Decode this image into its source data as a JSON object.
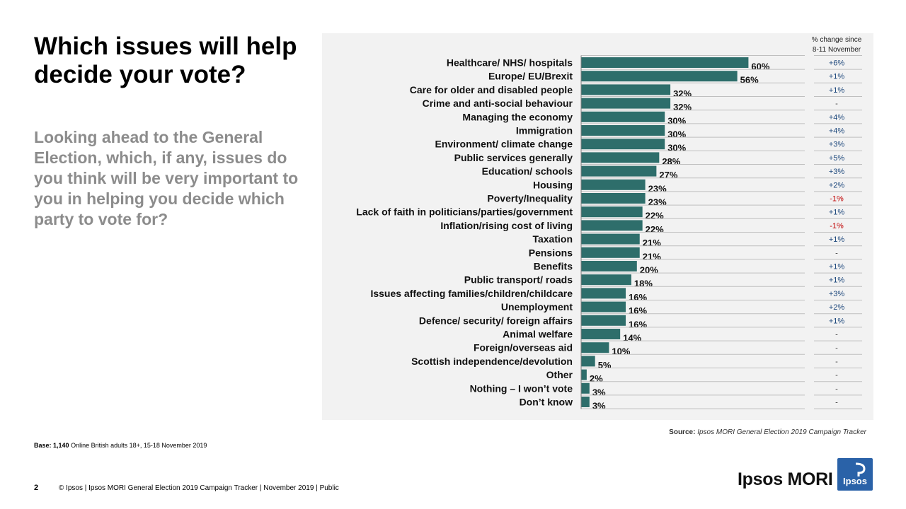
{
  "slide": {
    "title": "Which issues will help decide your vote?",
    "subtitle": "Looking ahead to the General Election, which, if any, issues do you think will be very important to you in helping you decide which party to vote for?",
    "source_label": "Source:",
    "source_text": "Ipsos MORI General Election 2019 Campaign Tracker",
    "base_label": "Base:",
    "base_count": "1,140",
    "base_text": "Online British adults 18+,  15-18 November 2019",
    "page_number": "2",
    "footer_text": "© Ipsos | Ipsos MORI  General Election 2019 Campaign Tracker | November 2019 | Public",
    "brand_name": "Ipsos MORI",
    "logo_text": "Ipsos"
  },
  "colors": {
    "bar": "#2e6e6b",
    "positive_change": "#1f497d",
    "negative_change": "#c00000",
    "neutral_change": "#404040",
    "panel_bg": "#f2f2f2"
  },
  "chart_data": {
    "type": "bar",
    "orientation": "horizontal",
    "change_header_line1": "% change since",
    "change_header_line2": "8-11 November",
    "xlim": [
      0,
      100
    ],
    "categories": [
      "Healthcare/ NHS/ hospitals",
      "Europe/ EU/Brexit",
      "Care for older and disabled people",
      "Crime and anti-social behaviour",
      "Managing the economy",
      "Immigration",
      "Environment/ climate change",
      "Public services generally",
      "Education/ schools",
      "Housing",
      "Poverty/Inequality",
      "Lack of faith in politicians/parties/government",
      "Inflation/rising cost of living",
      "Taxation",
      "Pensions",
      "Benefits",
      "Public transport/ roads",
      "Issues affecting families/children/childcare",
      "Unemployment",
      "Defence/ security/ foreign affairs",
      "Animal welfare",
      "Foreign/overseas aid",
      "Scottish independence/devolution",
      "Other",
      "Nothing – I won’t vote",
      "Don’t know"
    ],
    "values": [
      60,
      56,
      32,
      32,
      30,
      30,
      30,
      28,
      27,
      23,
      23,
      22,
      22,
      21,
      21,
      20,
      18,
      16,
      16,
      16,
      14,
      10,
      5,
      2,
      3,
      3
    ],
    "value_labels": [
      "60%",
      "56%",
      "32%",
      "32%",
      "30%",
      "30%",
      "30%",
      "28%",
      "27%",
      "23%",
      "23%",
      "22%",
      "22%",
      "21%",
      "21%",
      "20%",
      "18%",
      "16%",
      "16%",
      "16%",
      "14%",
      "10%",
      "5%",
      "2%",
      "3%",
      "3%"
    ],
    "changes": [
      "+6%",
      "+1%",
      "+1%",
      "-",
      "+4%",
      "+4%",
      "+3%",
      "+5%",
      "+3%",
      "+2%",
      "-1%",
      "+1%",
      "-1%",
      "+1%",
      "-",
      "+1%",
      "+1%",
      "+3%",
      "+2%",
      "+1%",
      "-",
      "-",
      "-",
      "-",
      "-",
      "-"
    ]
  }
}
